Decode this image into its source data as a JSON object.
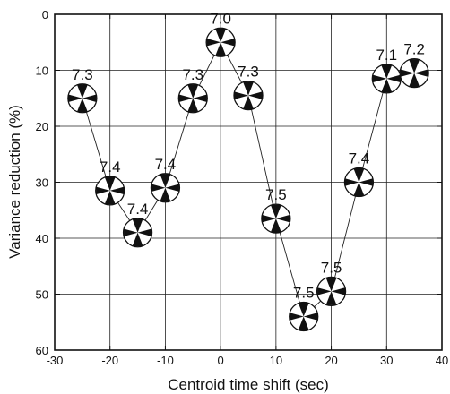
{
  "chart_data": {
    "type": "scatter",
    "title": "",
    "xlabel": "Centroid time shift (sec)",
    "ylabel": "Variance reduction (%)",
    "xlim": [
      -30,
      40
    ],
    "ylim": [
      0,
      60
    ],
    "y_inverted": true,
    "x_ticks": [
      "-30",
      "-20",
      "-10",
      "0",
      "10",
      "20",
      "30",
      "40"
    ],
    "y_ticks": [
      "0",
      "10",
      "20",
      "30",
      "40",
      "50",
      "60"
    ],
    "grid": true,
    "marker": "focal-mechanism-beachball",
    "points": [
      {
        "x": -25,
        "y": 15,
        "label": "7.3",
        "connected": true
      },
      {
        "x": -20,
        "y": 31.5,
        "label": "7.4",
        "connected": true
      },
      {
        "x": -15,
        "y": 39,
        "label": "7.4",
        "connected": true
      },
      {
        "x": -10,
        "y": 31,
        "label": "7.4",
        "connected": true
      },
      {
        "x": -5,
        "y": 15,
        "label": "7.3",
        "connected": true
      },
      {
        "x": 0,
        "y": 5,
        "label": "7.0",
        "connected": true
      },
      {
        "x": 5,
        "y": 14.5,
        "label": "7.3",
        "connected": true
      },
      {
        "x": 10,
        "y": 36.5,
        "label": "7.5",
        "connected": true
      },
      {
        "x": 15,
        "y": 54,
        "label": "7.5",
        "connected": true
      },
      {
        "x": 20,
        "y": 49.5,
        "label": "7.5",
        "connected": true
      },
      {
        "x": 25,
        "y": 30,
        "label": "7.4",
        "connected": true
      },
      {
        "x": 30,
        "y": 11.5,
        "label": "7.1",
        "connected": true
      },
      {
        "x": 35,
        "y": 10.5,
        "label": "7.2",
        "connected": false
      }
    ]
  }
}
